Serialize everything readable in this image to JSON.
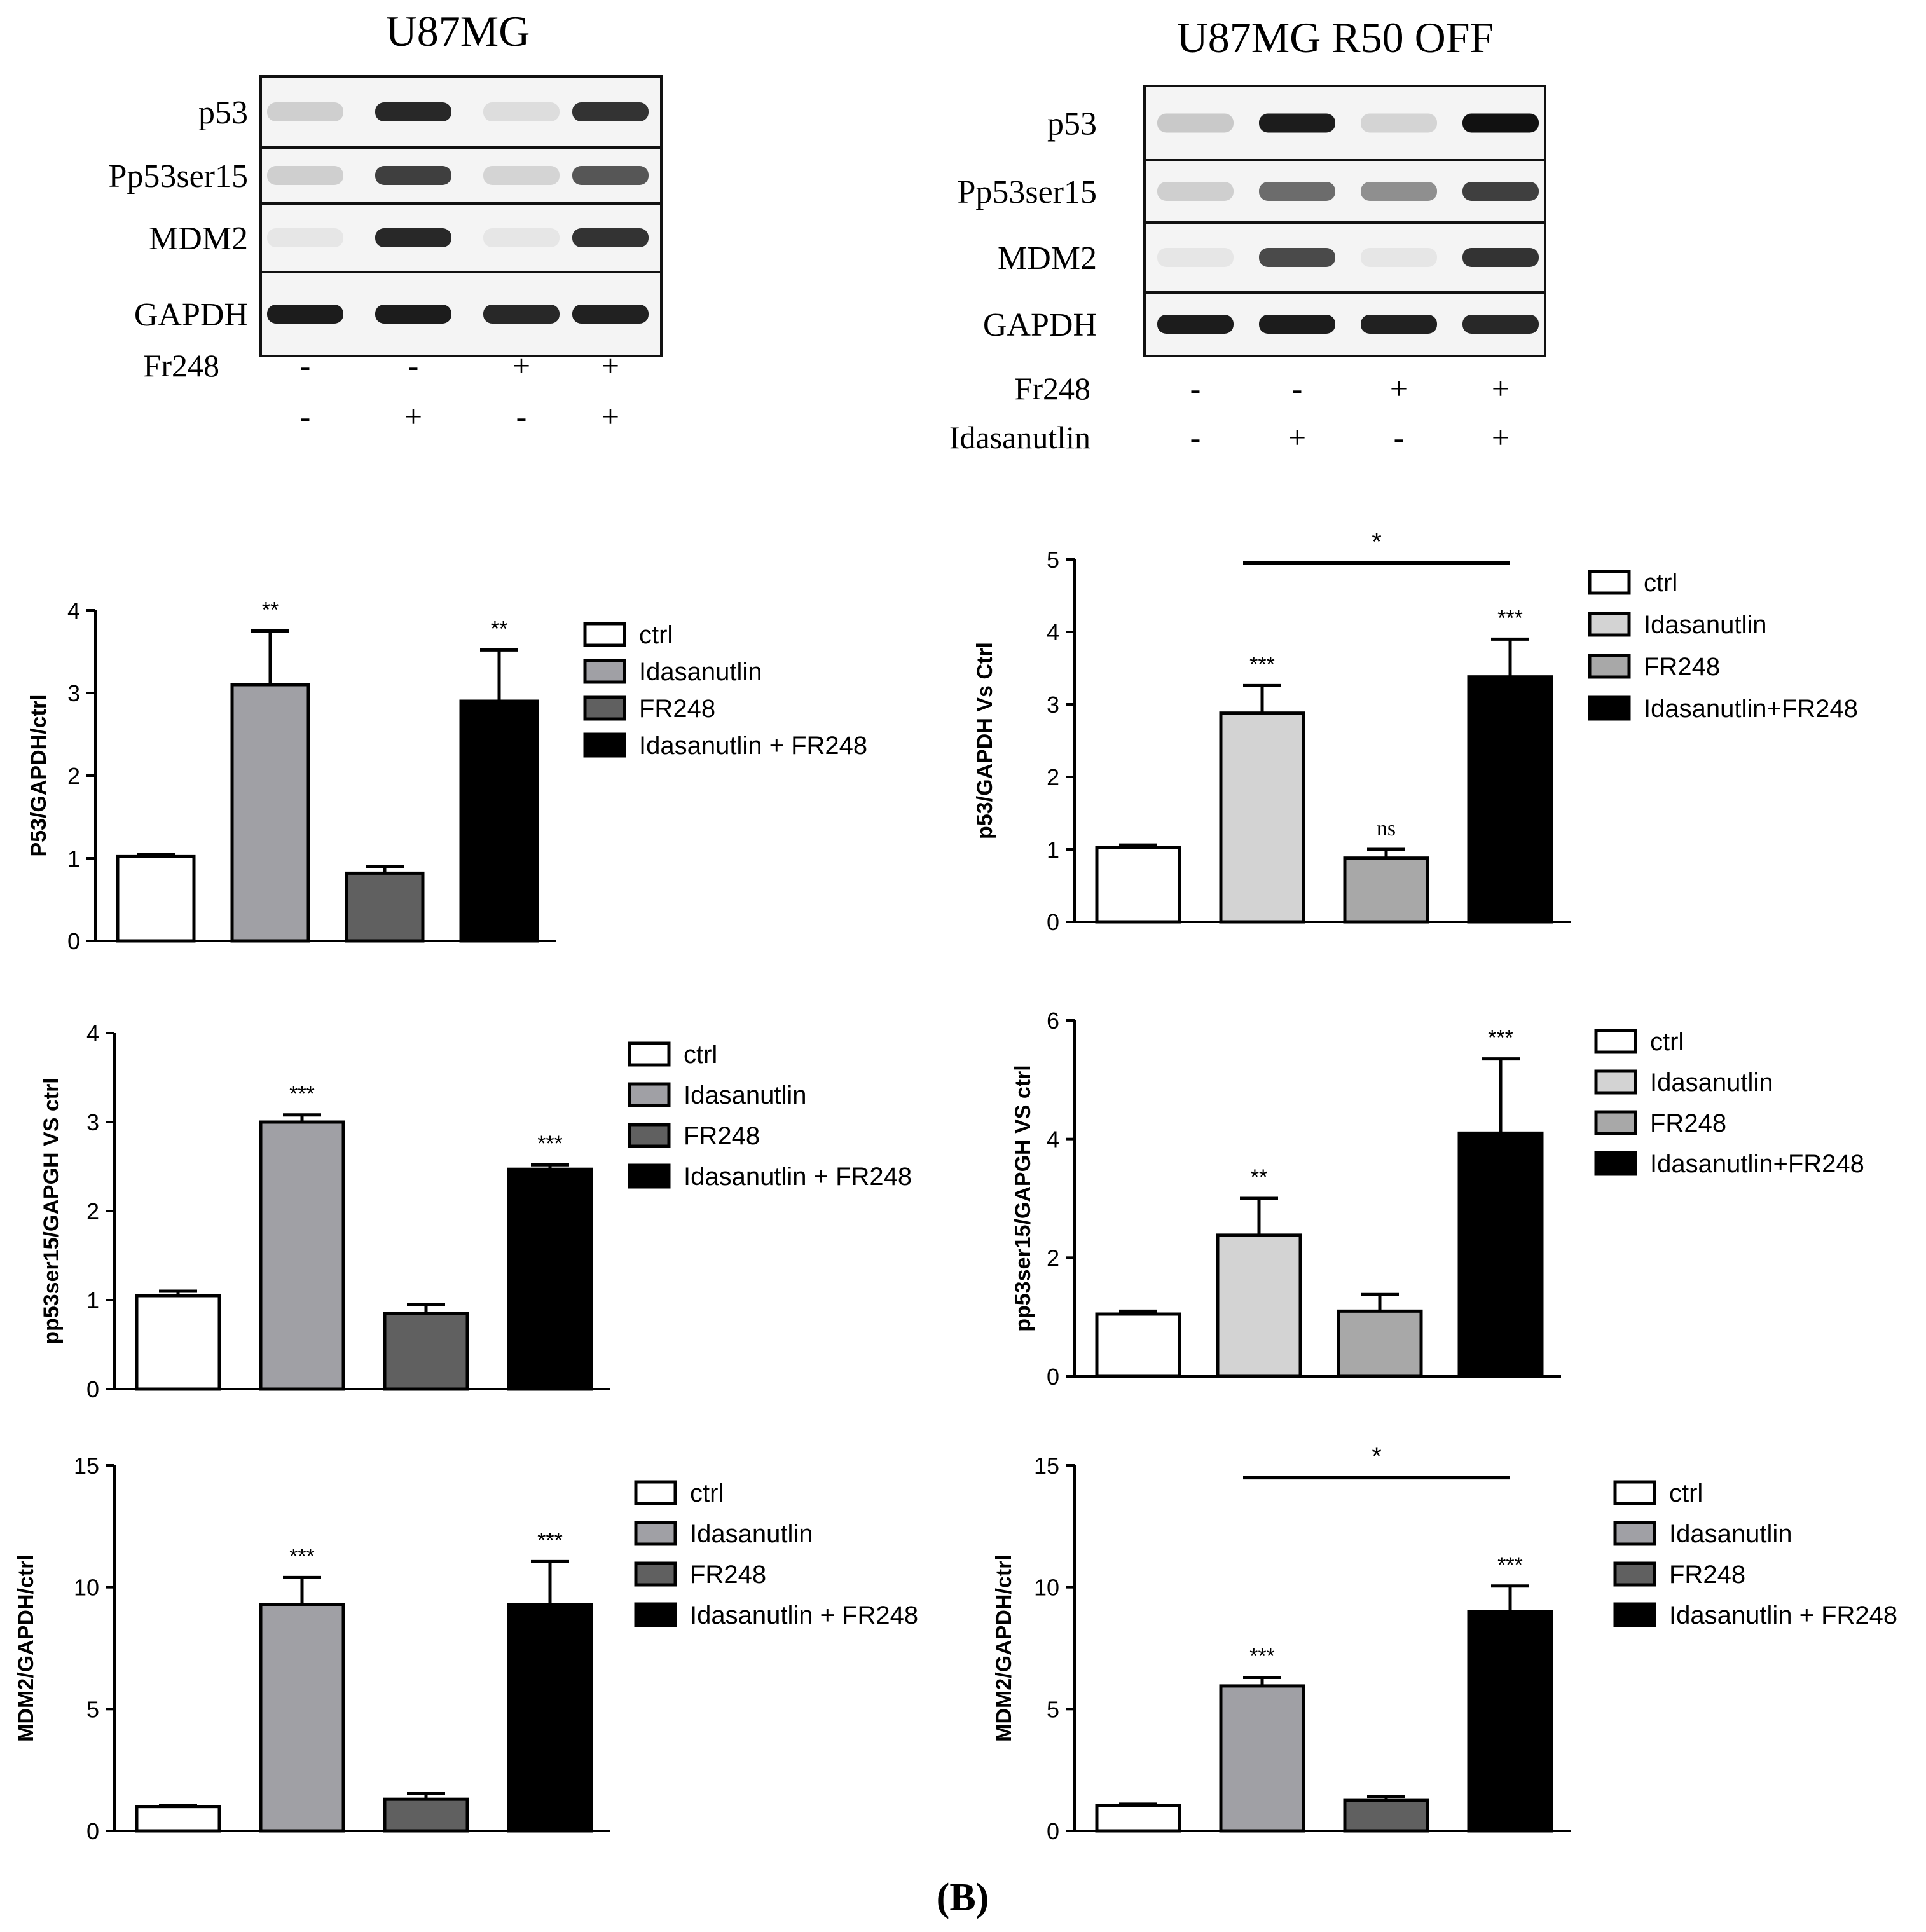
{
  "figure_label": "(B)",
  "blots": [
    {
      "title": "U87MG",
      "rows": [
        {
          "label": "p53",
          "intensities": [
            0.12,
            0.85,
            0.06,
            0.8
          ]
        },
        {
          "label": "Pp53ser15",
          "intensities": [
            0.12,
            0.75,
            0.1,
            0.65
          ]
        },
        {
          "label": "MDM2",
          "intensities": [
            0.02,
            0.85,
            0.02,
            0.8
          ]
        },
        {
          "label": "GAPDH",
          "intensities": [
            0.9,
            0.9,
            0.85,
            0.88
          ]
        }
      ],
      "treatments": [
        {
          "label": "Fr248",
          "signs": [
            "-",
            "-",
            "+",
            "+"
          ]
        },
        {
          "label": "",
          "signs": [
            "-",
            "+",
            "-",
            "+"
          ]
        }
      ]
    },
    {
      "title": "U87MG R50 OFF",
      "rows": [
        {
          "label": "p53",
          "intensities": [
            0.15,
            0.9,
            0.1,
            0.95
          ]
        },
        {
          "label": "Pp53ser15",
          "intensities": [
            0.12,
            0.55,
            0.4,
            0.75
          ]
        },
        {
          "label": "MDM2",
          "intensities": [
            0.02,
            0.7,
            0.02,
            0.8
          ]
        },
        {
          "label": "GAPDH",
          "intensities": [
            0.9,
            0.9,
            0.88,
            0.85
          ]
        }
      ],
      "treatments": [
        {
          "label": "Fr248",
          "signs": [
            "-",
            "-",
            "+",
            "+"
          ]
        },
        {
          "label": "Idasanutlin",
          "signs": [
            "-",
            "+",
            "-",
            "+"
          ]
        }
      ]
    }
  ],
  "chart_data": [
    {
      "type": "bar",
      "ylabel": "P53/GAPDH/ctrl",
      "ylim": [
        0,
        4
      ],
      "yticks": [
        0,
        1,
        2,
        3,
        4
      ],
      "categories": [
        "ctrl",
        "Idasanutlin",
        "FR248",
        "Idasanutlin + FR248"
      ],
      "values": [
        1.02,
        3.1,
        0.82,
        2.9
      ],
      "errors": [
        0.03,
        0.65,
        0.08,
        0.62
      ],
      "colors": [
        "#ffffff",
        "#a0a0a5",
        "#606060",
        "#000000"
      ],
      "annotations": [
        "",
        "**",
        "",
        "**"
      ],
      "bracket": null,
      "legend": [
        "ctrl",
        "Idasanutlin",
        "FR248",
        "Idasanutlin + FR248"
      ]
    },
    {
      "type": "bar",
      "ylabel": "p53/GAPDH Vs Ctrl",
      "ylim": [
        0,
        5
      ],
      "yticks": [
        0,
        1,
        2,
        3,
        4,
        5
      ],
      "categories": [
        "ctrl",
        "Idasanutlin",
        "FR248",
        "Idasanutlin+FR248"
      ],
      "values": [
        1.03,
        2.88,
        0.88,
        3.38
      ],
      "errors": [
        0.03,
        0.38,
        0.12,
        0.52
      ],
      "colors": [
        "#ffffff",
        "#d3d3d3",
        "#a8a8a8",
        "#000000"
      ],
      "annotations": [
        "",
        "***",
        "ns",
        "***"
      ],
      "bracket": {
        "from": 1,
        "to": 3,
        "label": "*",
        "y": 4.95
      },
      "legend": [
        "ctrl",
        "Idasanutlin",
        "FR248",
        "Idasanutlin+FR248"
      ]
    },
    {
      "type": "bar",
      "ylabel": "pp53ser15/GAPGH VS ctrl",
      "ylim": [
        0,
        4
      ],
      "yticks": [
        0,
        1,
        2,
        3,
        4
      ],
      "categories": [
        "ctrl",
        "Idasanutlin",
        "FR248",
        "Idasanutlin + FR248"
      ],
      "values": [
        1.05,
        3.0,
        0.85,
        2.47
      ],
      "errors": [
        0.05,
        0.08,
        0.1,
        0.05
      ],
      "colors": [
        "#ffffff",
        "#a0a0a5",
        "#606060",
        "#000000"
      ],
      "annotations": [
        "",
        "***",
        "",
        "***"
      ],
      "bracket": null,
      "legend": [
        "ctrl",
        "Idasanutlin",
        "FR248",
        "Idasanutlin + FR248"
      ]
    },
    {
      "type": "bar",
      "ylabel": "pp53ser15/GAPGH VS ctrl",
      "ylim": [
        0,
        6
      ],
      "yticks": [
        0,
        2,
        4,
        6
      ],
      "categories": [
        "ctrl",
        "Idasanutlin",
        "FR248",
        "Idasanutlin+FR248"
      ],
      "values": [
        1.05,
        2.38,
        1.1,
        4.1
      ],
      "errors": [
        0.05,
        0.62,
        0.28,
        1.25
      ],
      "colors": [
        "#ffffff",
        "#d3d3d3",
        "#a8a8a8",
        "#000000"
      ],
      "annotations": [
        "",
        "**",
        "",
        "***"
      ],
      "bracket": null,
      "legend": [
        "ctrl",
        "Idasanutlin",
        "FR248",
        "Idasanutlin+FR248"
      ]
    },
    {
      "type": "bar",
      "ylabel": "MDM2/GAPDH/ctrl",
      "ylim": [
        0,
        15
      ],
      "yticks": [
        0,
        5,
        10,
        15
      ],
      "categories": [
        "ctrl",
        "Idasanutlin",
        "FR248",
        "Idasanutlin + FR248"
      ],
      "values": [
        1.0,
        9.3,
        1.3,
        9.3
      ],
      "errors": [
        0.05,
        1.1,
        0.25,
        1.75
      ],
      "colors": [
        "#ffffff",
        "#a0a0a5",
        "#606060",
        "#000000"
      ],
      "annotations": [
        "",
        "***",
        "",
        "***"
      ],
      "bracket": null,
      "legend": [
        "ctrl",
        "Idasanutlin",
        "FR248",
        "Idasanutlin + FR248"
      ]
    },
    {
      "type": "bar",
      "ylabel": "MDM2/GAPDH/ctrl",
      "ylim": [
        0,
        15
      ],
      "yticks": [
        0,
        5,
        10,
        15
      ],
      "categories": [
        "ctrl",
        "Idasanutlin",
        "FR248",
        "Idasanutlin + FR248"
      ],
      "values": [
        1.05,
        5.95,
        1.25,
        9.0
      ],
      "errors": [
        0.05,
        0.35,
        0.15,
        1.05
      ],
      "colors": [
        "#ffffff",
        "#a0a0a5",
        "#606060",
        "#000000"
      ],
      "annotations": [
        "",
        "***",
        "",
        "***"
      ],
      "bracket": {
        "from": 1,
        "to": 3,
        "label": "*",
        "y": 14.5
      },
      "legend": [
        "ctrl",
        "Idasanutlin",
        "FR248",
        "Idasanutlin + FR248"
      ]
    }
  ]
}
